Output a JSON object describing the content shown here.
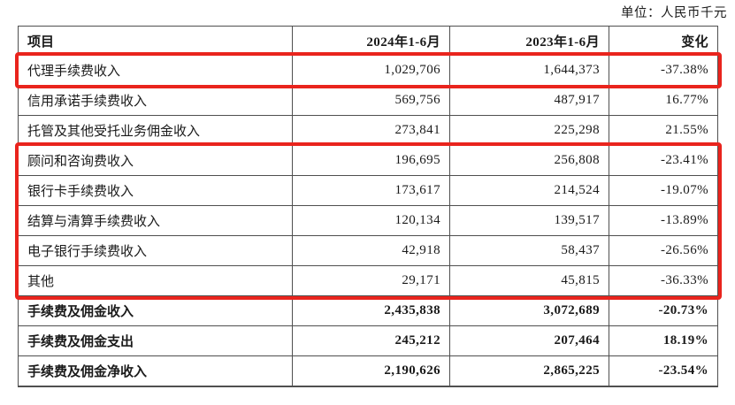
{
  "page": {
    "unit_label": "单位：人民币千元"
  },
  "table": {
    "headers": {
      "item": "项目",
      "period_2024": "2024年1-6月",
      "period_2023": "2023年1-6月",
      "change": "变化"
    },
    "rows": [
      {
        "item": "代理手续费收入",
        "y2024": "1,029,706",
        "y2023": "1,644,373",
        "change": "-37.38%"
      },
      {
        "item": "信用承诺手续费收入",
        "y2024": "569,756",
        "y2023": "487,917",
        "change": "16.77%"
      },
      {
        "item": "托管及其他受托业务佣金收入",
        "y2024": "273,841",
        "y2023": "225,298",
        "change": "21.55%"
      },
      {
        "item": "顾问和咨询费收入",
        "y2024": "196,695",
        "y2023": "256,808",
        "change": "-23.41%"
      },
      {
        "item": "银行卡手续费收入",
        "y2024": "173,617",
        "y2023": "214,524",
        "change": "-19.07%"
      },
      {
        "item": "结算与清算手续费收入",
        "y2024": "120,134",
        "y2023": "139,517",
        "change": "-13.89%"
      },
      {
        "item": "电子银行手续费收入",
        "y2024": "42,918",
        "y2023": "58,437",
        "change": "-26.56%"
      },
      {
        "item": "其他",
        "y2024": "29,171",
        "y2023": "45,815",
        "change": "-36.33%"
      },
      {
        "item": "手续费及佣金收入",
        "y2024": "2,435,838",
        "y2023": "3,072,689",
        "change": "-20.73%"
      },
      {
        "item": "手续费及佣金支出",
        "y2024": "245,212",
        "y2023": "207,464",
        "change": "18.19%"
      },
      {
        "item": "手续费及佣金净收入",
        "y2024": "2,190,626",
        "y2023": "2,865,225",
        "change": "-23.54%"
      }
    ]
  },
  "annotations": {
    "highlight_color": "#e9241d",
    "boxes": [
      {
        "name": "highlight-box-1",
        "covers": [
          "代理手续费收入"
        ]
      },
      {
        "name": "highlight-box-2",
        "covers": [
          "顾问和咨询费收入",
          "银行卡手续费收入",
          "结算与清算手续费收入",
          "电子银行手续费收入",
          "其他"
        ]
      }
    ]
  },
  "colors": {
    "border": "#4f4f4f",
    "text": "#1a1a1a",
    "highlight": "#e9241d",
    "background": "#ffffff"
  }
}
